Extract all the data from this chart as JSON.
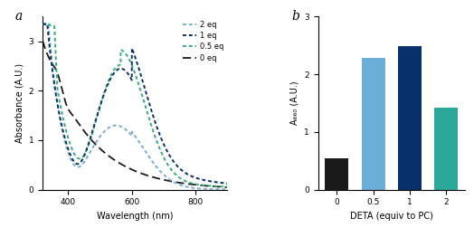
{
  "panel_a": {
    "title": "a",
    "xlabel": "Wavelength (nm)",
    "ylabel": "Absorbance (A.U.)",
    "xlim": [
      320,
      900
    ],
    "ylim": [
      0,
      3.5
    ],
    "yticks": [
      0,
      1,
      2,
      3
    ],
    "xticks": [
      400,
      600,
      800
    ]
  },
  "panel_b": {
    "title": "b",
    "xlabel": "DETA (equiv to PC)",
    "ylabel": "A₆₆₀ (A.U.)",
    "ylim": [
      0,
      3.0
    ],
    "yticks": [
      0,
      1,
      2,
      3
    ],
    "categories": [
      "0",
      "0.5",
      "1",
      "2"
    ],
    "values": [
      0.55,
      2.28,
      2.48,
      1.42
    ],
    "bar_colors": [
      "#1a1a1a",
      "#6baed6",
      "#08306b",
      "#2ca89a"
    ]
  },
  "curves": {
    "2 eq": {
      "color": "#7aadd4",
      "lw": 1.4,
      "zorder": 2
    },
    "1 eq": {
      "color": "#08306b",
      "lw": 1.4,
      "zorder": 4
    },
    "0.5 eq": {
      "color": "#3daa7a",
      "lw": 1.4,
      "zorder": 3
    },
    "0 eq": {
      "color": "#1a1a1a",
      "lw": 1.3,
      "zorder": 1
    }
  },
  "legend_order": [
    "2 eq",
    "1 eq",
    "0.5 eq",
    "0 eq"
  ]
}
